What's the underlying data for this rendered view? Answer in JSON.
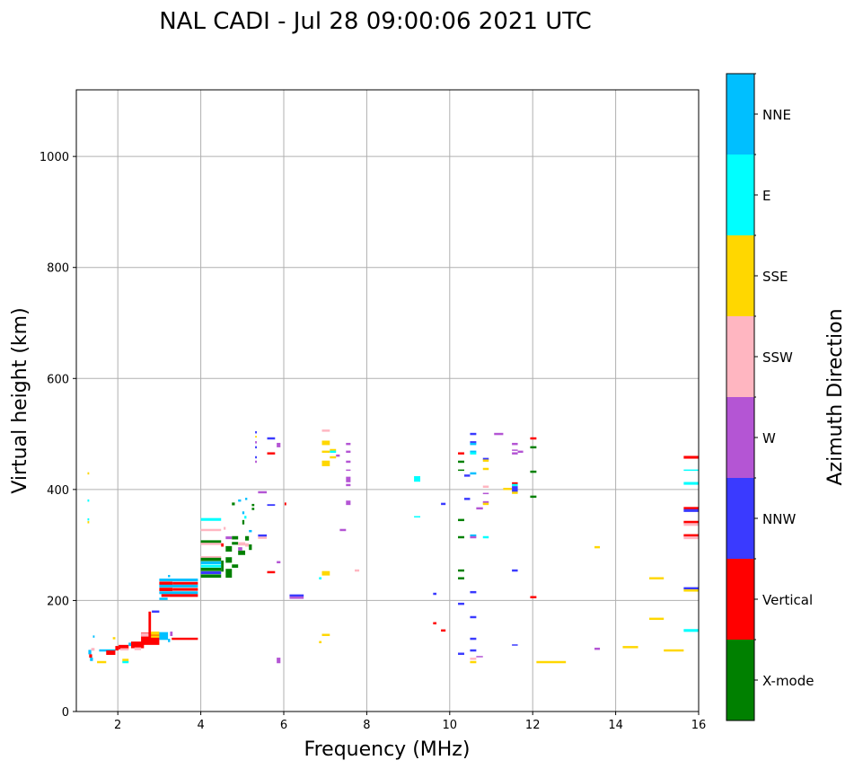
{
  "chart_data": {
    "type": "scatter",
    "title": "NAL CADI - Jul 28 09:00:06 2021 UTC",
    "xlabel": "Frequency (MHz)",
    "ylabel": "Virtual height (km)",
    "xlim": [
      1,
      16
    ],
    "ylim": [
      0,
      1120
    ],
    "xticks": [
      2,
      4,
      6,
      8,
      10,
      12,
      14,
      16
    ],
    "yticks": [
      0,
      200,
      400,
      600,
      800,
      1000
    ],
    "grid": true,
    "colorbar": {
      "label": "Azimuth Direction",
      "categories": [
        "X-mode",
        "Vertical",
        "NNW",
        "W",
        "SSW",
        "SSE",
        "E",
        "NNE"
      ],
      "colors": [
        "#008000",
        "#ff0000",
        "#3a3aff",
        "#b455d4",
        "#ffb6c1",
        "#ffd700",
        "#00ffff",
        "#00bfff"
      ]
    },
    "marks_format": [
      "freq_start_MHz",
      "freq_end_MHz",
      "height_km",
      "thickness_km",
      "category_index"
    ],
    "marks": [
      [
        1.27,
        1.31,
        429,
        4,
        5
      ],
      [
        1.27,
        1.31,
        380,
        4,
        6
      ],
      [
        1.27,
        1.31,
        346,
        4,
        6
      ],
      [
        1.27,
        1.31,
        341,
        4,
        5
      ],
      [
        1.29,
        1.36,
        107,
        8,
        7
      ],
      [
        1.31,
        1.38,
        100,
        6,
        1
      ],
      [
        1.36,
        1.44,
        112,
        5,
        4
      ],
      [
        1.33,
        1.4,
        94,
        6,
        7
      ],
      [
        1.4,
        1.44,
        135,
        4,
        7
      ],
      [
        1.5,
        1.72,
        89,
        4,
        5
      ],
      [
        1.55,
        1.94,
        110,
        4,
        7
      ],
      [
        1.72,
        1.94,
        106,
        8,
        1
      ],
      [
        1.94,
        2.02,
        114,
        8,
        1
      ],
      [
        1.88,
        1.94,
        132,
        4,
        5
      ],
      [
        2.02,
        2.26,
        116,
        8,
        1
      ],
      [
        2.06,
        2.26,
        112,
        4,
        4
      ],
      [
        2.11,
        2.26,
        92,
        6,
        5
      ],
      [
        2.11,
        2.26,
        89,
        4,
        6
      ],
      [
        2.26,
        2.32,
        121,
        6,
        7
      ],
      [
        2.32,
        2.63,
        120,
        12,
        1
      ],
      [
        2.4,
        2.56,
        113,
        5,
        4
      ],
      [
        2.56,
        3.0,
        131,
        22,
        1
      ],
      [
        2.56,
        2.74,
        138,
        6,
        4
      ],
      [
        2.74,
        2.8,
        160,
        40,
        1
      ],
      [
        2.8,
        3.0,
        141,
        6,
        5
      ],
      [
        2.8,
        3.0,
        135,
        4,
        5
      ],
      [
        3.0,
        3.21,
        136,
        14,
        7
      ],
      [
        3.21,
        3.26,
        128,
        6,
        7
      ],
      [
        2.82,
        3.0,
        180,
        4,
        2
      ],
      [
        3.3,
        3.93,
        131,
        4,
        1
      ],
      [
        3.26,
        3.32,
        140,
        8,
        3
      ],
      [
        3.0,
        3.93,
        237,
        5,
        7
      ],
      [
        3.0,
        3.32,
        231,
        6,
        1
      ],
      [
        3.32,
        3.93,
        231,
        5,
        1
      ],
      [
        3.0,
        3.93,
        226,
        5,
        7
      ],
      [
        3.0,
        3.32,
        220,
        6,
        1
      ],
      [
        3.32,
        3.93,
        220,
        5,
        1
      ],
      [
        3.0,
        3.93,
        214,
        5,
        7
      ],
      [
        3.05,
        3.93,
        209,
        5,
        1
      ],
      [
        3.0,
        3.2,
        203,
        4,
        7
      ],
      [
        3.21,
        3.26,
        244,
        4,
        7
      ],
      [
        4.0,
        4.49,
        346,
        5,
        6
      ],
      [
        4.0,
        4.49,
        327,
        4,
        4
      ],
      [
        4.0,
        4.49,
        306,
        5,
        0
      ],
      [
        4.0,
        4.49,
        302,
        4,
        4
      ],
      [
        4.0,
        4.49,
        278,
        4,
        4
      ],
      [
        4.0,
        4.49,
        274,
        6,
        0
      ],
      [
        4.0,
        4.49,
        268,
        5,
        7
      ],
      [
        4.0,
        4.49,
        262,
        5,
        6
      ],
      [
        4.0,
        4.49,
        256,
        6,
        0
      ],
      [
        4.0,
        4.49,
        250,
        5,
        2
      ],
      [
        4.0,
        4.49,
        244,
        6,
        0
      ],
      [
        4.49,
        4.55,
        262,
        20,
        0
      ],
      [
        4.49,
        4.55,
        300,
        6,
        1
      ],
      [
        4.55,
        4.6,
        330,
        5,
        4
      ],
      [
        4.6,
        4.75,
        293,
        10,
        0
      ],
      [
        4.6,
        4.75,
        273,
        10,
        0
      ],
      [
        4.6,
        4.75,
        249,
        16,
        0
      ],
      [
        4.75,
        4.9,
        262,
        6,
        0
      ],
      [
        4.75,
        4.9,
        313,
        6,
        0
      ],
      [
        4.6,
        4.75,
        313,
        5,
        3
      ],
      [
        4.75,
        4.9,
        303,
        5,
        0
      ],
      [
        4.9,
        5.07,
        286,
        8,
        0
      ],
      [
        4.9,
        5.07,
        302,
        6,
        4
      ],
      [
        5.07,
        5.16,
        312,
        8,
        0
      ],
      [
        5.07,
        5.16,
        300,
        6,
        4
      ],
      [
        5.16,
        5.23,
        296,
        10,
        0
      ],
      [
        4.9,
        5.0,
        293,
        6,
        3
      ],
      [
        4.75,
        4.82,
        374,
        5,
        0
      ],
      [
        5.16,
        5.23,
        325,
        4,
        7
      ],
      [
        5.0,
        5.05,
        341,
        8,
        0
      ],
      [
        5.05,
        5.1,
        350,
        5,
        6
      ],
      [
        5.0,
        5.05,
        358,
        5,
        7
      ],
      [
        5.23,
        5.29,
        365,
        4,
        0
      ],
      [
        5.23,
        5.29,
        372,
        4,
        0
      ],
      [
        4.9,
        4.97,
        380,
        4,
        7
      ],
      [
        5.07,
        5.12,
        383,
        4,
        7
      ],
      [
        5.31,
        5.35,
        503,
        4,
        2
      ],
      [
        5.31,
        5.35,
        495,
        3,
        5
      ],
      [
        5.31,
        5.35,
        485,
        4,
        3
      ],
      [
        5.31,
        5.35,
        476,
        4,
        2
      ],
      [
        5.31,
        5.35,
        458,
        4,
        2
      ],
      [
        5.31,
        5.35,
        450,
        4,
        3
      ],
      [
        5.6,
        5.79,
        492,
        4,
        2
      ],
      [
        5.83,
        5.92,
        480,
        8,
        3
      ],
      [
        5.6,
        5.79,
        465,
        4,
        1
      ],
      [
        5.38,
        5.59,
        395,
        4,
        3
      ],
      [
        5.6,
        5.79,
        372,
        3,
        2
      ],
      [
        5.38,
        5.59,
        317,
        4,
        2
      ],
      [
        5.38,
        5.59,
        313,
        4,
        4
      ],
      [
        5.83,
        5.92,
        269,
        4,
        3
      ],
      [
        5.6,
        5.79,
        251,
        4,
        1
      ],
      [
        6.02,
        6.06,
        374,
        5,
        1
      ],
      [
        6.14,
        6.48,
        209,
        4,
        2
      ],
      [
        6.14,
        6.48,
        205,
        4,
        3
      ],
      [
        5.83,
        5.92,
        92,
        10,
        3
      ],
      [
        6.92,
        7.11,
        506,
        4,
        4
      ],
      [
        6.92,
        7.11,
        484,
        8,
        5
      ],
      [
        7.11,
        7.26,
        471,
        4,
        5
      ],
      [
        7.11,
        7.26,
        468,
        4,
        6
      ],
      [
        6.92,
        7.11,
        468,
        4,
        5
      ],
      [
        7.26,
        7.35,
        461,
        4,
        3
      ],
      [
        7.11,
        7.26,
        458,
        4,
        5
      ],
      [
        6.92,
        7.11,
        447,
        10,
        5
      ],
      [
        6.92,
        7.11,
        249,
        8,
        5
      ],
      [
        6.85,
        6.91,
        240,
        4,
        6
      ],
      [
        6.92,
        7.11,
        138,
        4,
        5
      ],
      [
        6.85,
        6.91,
        125,
        4,
        5
      ],
      [
        7.5,
        7.61,
        482,
        4,
        3
      ],
      [
        7.5,
        7.61,
        468,
        4,
        3
      ],
      [
        7.5,
        7.61,
        450,
        4,
        3
      ],
      [
        7.5,
        7.61,
        435,
        2,
        3
      ],
      [
        7.5,
        7.61,
        418,
        10,
        3
      ],
      [
        7.5,
        7.61,
        408,
        4,
        3
      ],
      [
        7.5,
        7.61,
        376,
        8,
        3
      ],
      [
        7.35,
        7.5,
        327,
        4,
        3
      ],
      [
        7.71,
        7.82,
        254,
        4,
        4
      ],
      [
        9.14,
        9.29,
        419,
        10,
        6
      ],
      [
        9.14,
        9.29,
        351,
        2,
        6
      ],
      [
        9.6,
        9.68,
        212,
        4,
        2
      ],
      [
        9.6,
        9.68,
        159,
        4,
        1
      ],
      [
        9.79,
        9.9,
        374,
        4,
        2
      ],
      [
        9.79,
        9.9,
        146,
        4,
        1
      ],
      [
        10.2,
        10.35,
        465,
        4,
        1
      ],
      [
        10.2,
        10.35,
        450,
        4,
        0
      ],
      [
        10.2,
        10.35,
        435,
        2,
        0
      ],
      [
        10.2,
        10.35,
        345,
        4,
        0
      ],
      [
        10.2,
        10.35,
        314,
        4,
        0
      ],
      [
        10.2,
        10.35,
        254,
        4,
        0
      ],
      [
        10.2,
        10.35,
        240,
        4,
        0
      ],
      [
        10.2,
        10.35,
        194,
        4,
        2
      ],
      [
        10.2,
        10.35,
        104,
        4,
        2
      ],
      [
        10.35,
        10.49,
        425,
        4,
        2
      ],
      [
        10.35,
        10.49,
        383,
        4,
        2
      ],
      [
        10.49,
        10.64,
        500,
        4,
        2
      ],
      [
        10.49,
        10.64,
        485,
        4,
        2
      ],
      [
        10.49,
        10.64,
        482,
        4,
        7
      ],
      [
        10.49,
        10.64,
        468,
        4,
        7
      ],
      [
        10.49,
        10.64,
        465,
        4,
        6
      ],
      [
        10.49,
        10.64,
        429,
        4,
        7
      ],
      [
        10.49,
        10.64,
        317,
        4,
        7
      ],
      [
        10.49,
        10.64,
        314,
        4,
        3
      ],
      [
        10.49,
        10.64,
        215,
        4,
        2
      ],
      [
        10.49,
        10.64,
        170,
        4,
        2
      ],
      [
        10.49,
        10.64,
        131,
        4,
        2
      ],
      [
        10.49,
        10.64,
        110,
        4,
        2
      ],
      [
        10.49,
        10.64,
        95,
        4,
        4
      ],
      [
        10.49,
        10.64,
        89,
        4,
        5
      ],
      [
        10.64,
        10.8,
        99,
        2,
        3
      ],
      [
        10.64,
        10.8,
        366,
        4,
        3
      ],
      [
        10.8,
        10.94,
        455,
        4,
        2
      ],
      [
        10.8,
        10.94,
        452,
        4,
        5
      ],
      [
        10.8,
        10.94,
        437,
        4,
        5
      ],
      [
        10.8,
        10.94,
        405,
        4,
        4
      ],
      [
        10.8,
        10.94,
        393,
        2,
        3
      ],
      [
        10.8,
        10.94,
        377,
        4,
        3
      ],
      [
        10.8,
        10.94,
        374,
        4,
        5
      ],
      [
        10.8,
        10.94,
        314,
        4,
        6
      ],
      [
        11.07,
        11.29,
        500,
        4,
        3
      ],
      [
        11.29,
        11.5,
        401,
        4,
        5
      ],
      [
        11.5,
        11.64,
        482,
        4,
        3
      ],
      [
        11.5,
        11.64,
        471,
        2,
        3
      ],
      [
        11.64,
        11.77,
        468,
        4,
        3
      ],
      [
        11.5,
        11.64,
        465,
        4,
        3
      ],
      [
        11.5,
        11.64,
        411,
        4,
        1
      ],
      [
        11.5,
        11.64,
        408,
        4,
        6
      ],
      [
        11.5,
        11.64,
        402,
        8,
        2
      ],
      [
        11.5,
        11.64,
        397,
        4,
        2
      ],
      [
        11.5,
        11.64,
        394,
        4,
        5
      ],
      [
        11.5,
        11.64,
        254,
        4,
        2
      ],
      [
        11.5,
        11.64,
        120,
        2,
        2
      ],
      [
        11.94,
        12.09,
        492,
        4,
        1
      ],
      [
        11.94,
        12.09,
        476,
        4,
        0
      ],
      [
        11.94,
        12.09,
        432,
        4,
        0
      ],
      [
        11.94,
        12.09,
        387,
        4,
        0
      ],
      [
        11.94,
        12.09,
        206,
        4,
        1
      ],
      [
        12.09,
        12.8,
        89,
        4,
        5
      ],
      [
        13.49,
        13.62,
        296,
        4,
        5
      ],
      [
        13.49,
        13.62,
        113,
        4,
        3
      ],
      [
        14.17,
        14.54,
        116,
        4,
        5
      ],
      [
        14.81,
        15.16,
        240,
        4,
        5
      ],
      [
        14.81,
        15.16,
        167,
        4,
        5
      ],
      [
        15.16,
        15.64,
        110,
        4,
        5
      ],
      [
        15.64,
        16.0,
        458,
        5,
        1
      ],
      [
        15.64,
        16.0,
        435,
        2,
        6
      ],
      [
        15.64,
        16.0,
        411,
        5,
        6
      ],
      [
        15.64,
        16.0,
        366,
        5,
        1
      ],
      [
        15.64,
        16.0,
        362,
        5,
        2
      ],
      [
        15.64,
        16.0,
        341,
        5,
        1
      ],
      [
        15.64,
        16.0,
        337,
        5,
        4
      ],
      [
        15.64,
        16.0,
        317,
        5,
        1
      ],
      [
        15.64,
        16.0,
        313,
        5,
        4
      ],
      [
        15.64,
        16.0,
        222,
        4,
        2
      ],
      [
        15.64,
        16.0,
        218,
        4,
        5
      ],
      [
        15.64,
        16.0,
        146,
        5,
        6
      ]
    ]
  }
}
